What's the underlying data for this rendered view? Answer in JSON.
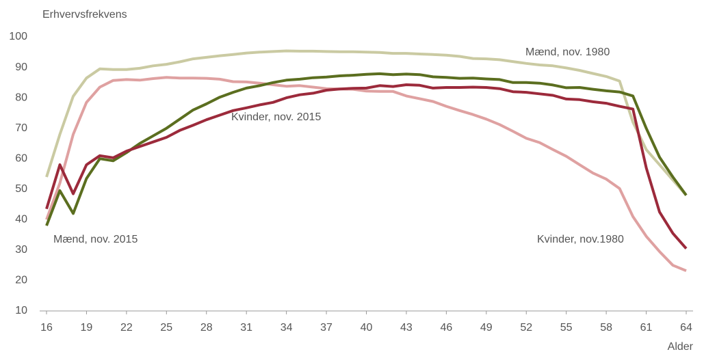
{
  "chart_data": {
    "type": "line",
    "y_label": "Erhvervsfrekvens",
    "x_label": "Alder",
    "x": [
      16,
      17,
      18,
      19,
      20,
      21,
      22,
      23,
      24,
      25,
      26,
      27,
      28,
      29,
      30,
      31,
      32,
      33,
      34,
      35,
      36,
      37,
      38,
      39,
      40,
      41,
      42,
      43,
      44,
      45,
      46,
      47,
      48,
      49,
      50,
      51,
      52,
      53,
      54,
      55,
      56,
      57,
      58,
      59,
      60,
      61,
      62,
      63,
      64
    ],
    "xlim": [
      16,
      64
    ],
    "xticks": [
      16,
      19,
      22,
      25,
      28,
      31,
      34,
      37,
      40,
      43,
      46,
      49,
      52,
      55,
      58,
      61,
      64
    ],
    "ylim": [
      10,
      100
    ],
    "yticks": [
      10,
      20,
      30,
      40,
      50,
      60,
      70,
      80,
      90,
      100
    ],
    "grid": false,
    "series": [
      {
        "name": "Mænd, nov. 1980",
        "color": "#cacaa2",
        "values": [
          54,
          68,
          80.5,
          86.5,
          89.5,
          89.3,
          89.3,
          89.7,
          90.5,
          91,
          91.8,
          92.8,
          93.3,
          93.8,
          94.2,
          94.7,
          95,
          95.2,
          95.4,
          95.3,
          95.3,
          95.2,
          95.1,
          95.1,
          95,
          94.9,
          94.6,
          94.6,
          94.4,
          94.2,
          94,
          93.6,
          92.9,
          92.8,
          92.5,
          91.9,
          91.3,
          90.8,
          90.5,
          89.8,
          89,
          88,
          87,
          85.5,
          72,
          63,
          58,
          53,
          48
        ]
      },
      {
        "name": "Kvinder, nov.1980",
        "color": "#dfa1a1",
        "values": [
          40,
          52,
          68,
          78.5,
          83.5,
          85.7,
          86,
          85.8,
          86.3,
          86.7,
          86.5,
          86.5,
          86.4,
          86.1,
          85.3,
          85.2,
          84.8,
          84.3,
          83.8,
          84,
          83.5,
          83,
          82.9,
          82.8,
          82.2,
          82.1,
          82.1,
          80.6,
          79.7,
          78.8,
          77.2,
          75.8,
          74.5,
          73,
          71.2,
          69,
          66.7,
          65.3,
          63,
          60.8,
          58,
          55.3,
          53.3,
          50.2,
          41,
          34.5,
          29.5,
          25,
          23.2
        ]
      },
      {
        "name": "Mænd, nov. 2015",
        "color": "#5b6e1f",
        "values": [
          38,
          49.5,
          42,
          53.5,
          60,
          59.3,
          62,
          65,
          67.5,
          70,
          73,
          76,
          78,
          80.2,
          81.8,
          83.2,
          84,
          85,
          85.8,
          86.1,
          86.6,
          86.8,
          87.2,
          87.4,
          87.7,
          87.9,
          87.6,
          87.8,
          87.6,
          86.9,
          86.7,
          86.4,
          86.5,
          86.2,
          86,
          85,
          85,
          84.8,
          84.2,
          83.3,
          83.4,
          82.8,
          82.3,
          81.9,
          80.6,
          70,
          60.5,
          54,
          48
        ]
      },
      {
        "name": "Kvinder, nov. 2015",
        "color": "#9c2a3b",
        "values": [
          43.5,
          58,
          48.5,
          58,
          61,
          60.3,
          62.5,
          64,
          65.5,
          67,
          69.3,
          71,
          72.8,
          74.3,
          75.8,
          76.7,
          77.7,
          78.5,
          80,
          81,
          81.5,
          82.5,
          82.9,
          83.1,
          83.2,
          84,
          83.7,
          84.3,
          84.1,
          83.2,
          83.4,
          83.4,
          83.5,
          83.4,
          83,
          82,
          81.8,
          81.3,
          80.8,
          79.6,
          79.4,
          78.7,
          78.2,
          77.2,
          76.3,
          57,
          42.5,
          35.5,
          30.5
        ]
      }
    ]
  }
}
